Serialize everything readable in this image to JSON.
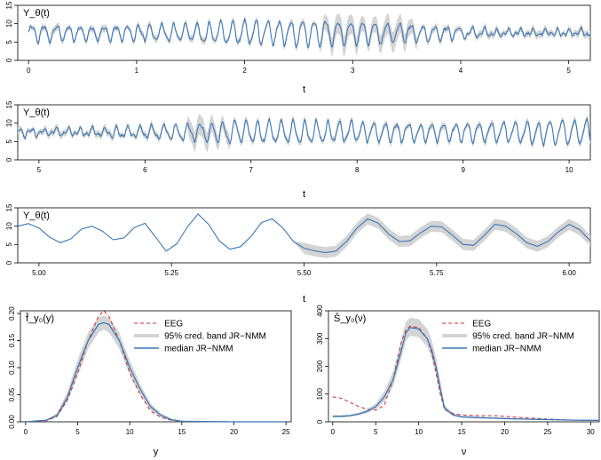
{
  "colors": {
    "median": "#3a78b5",
    "band": "#d4d4d4",
    "eeg": "#d62728",
    "axis": "#000000"
  },
  "chart_data": [
    {
      "type": "line",
      "panel_label": "Y_θ(t)",
      "xlabel": "t",
      "xlim": [
        -0.1,
        5.2
      ],
      "ylim": [
        0,
        15
      ],
      "xticks": [
        0,
        1,
        2,
        3,
        4,
        5
      ],
      "yticks": [
        0,
        5,
        10,
        15
      ],
      "oscillation": {
        "t_start": 0.0,
        "t_end": 5.2,
        "samples": 700,
        "freq_hz": 9,
        "mean": 7.5,
        "amplitude": 3.0,
        "noisy_segment": [
          2.7,
          3.6
        ],
        "seed": 11
      },
      "series": [
        {
          "values": []
        }
      ]
    },
    {
      "type": "line",
      "panel_label": "Y_θ(t)",
      "xlabel": "t",
      "xlim": [
        4.8,
        10.2
      ],
      "ylim": [
        0,
        15
      ],
      "xticks": [
        5,
        6,
        7,
        8,
        9,
        10
      ],
      "yticks": [
        0,
        5,
        10,
        15
      ],
      "oscillation": {
        "t_start": 4.8,
        "t_end": 10.2,
        "samples": 700,
        "freq_hz": 9,
        "mean": 7.5,
        "amplitude": 3.3,
        "noisy_segment": [
          6.4,
          6.8
        ],
        "seed": 23
      },
      "series": [
        {
          "values": []
        }
      ]
    },
    {
      "type": "line",
      "panel_label": "Y_θ(t)",
      "xlabel": "t",
      "xlim": [
        4.96,
        6.04
      ],
      "ylim": [
        0,
        15
      ],
      "xticks": [
        5.0,
        5.25,
        5.5,
        5.75,
        6.0
      ],
      "xticklabels": [
        "5.00",
        "5.25",
        "5.50",
        "5.75",
        "6.00"
      ],
      "yticks": [
        0,
        5,
        10,
        15
      ],
      "points": [
        [
          4.96,
          10.0
        ],
        [
          4.98,
          10.7
        ],
        [
          5.0,
          9.5
        ],
        [
          5.02,
          7.0
        ],
        [
          5.04,
          5.5
        ],
        [
          5.06,
          6.5
        ],
        [
          5.08,
          9.2
        ],
        [
          5.1,
          10.0
        ],
        [
          5.12,
          8.6
        ],
        [
          5.14,
          6.3
        ],
        [
          5.16,
          6.8
        ],
        [
          5.18,
          9.6
        ],
        [
          5.2,
          10.8
        ],
        [
          5.22,
          7.0
        ],
        [
          5.24,
          3.2
        ],
        [
          5.26,
          5.2
        ],
        [
          5.28,
          9.8
        ],
        [
          5.3,
          13.3
        ],
        [
          5.32,
          10.5
        ],
        [
          5.34,
          6.0
        ],
        [
          5.36,
          3.7
        ],
        [
          5.38,
          4.4
        ],
        [
          5.4,
          7.2
        ],
        [
          5.42,
          11.0
        ],
        [
          5.44,
          12.0
        ],
        [
          5.46,
          9.5
        ],
        [
          5.48,
          5.8
        ],
        [
          5.5,
          4.0
        ],
        [
          5.52,
          3.3
        ],
        [
          5.54,
          2.8
        ],
        [
          5.56,
          3.2
        ],
        [
          5.58,
          5.8
        ],
        [
          5.6,
          9.5
        ],
        [
          5.62,
          12.0
        ],
        [
          5.64,
          10.8
        ],
        [
          5.66,
          7.8
        ],
        [
          5.68,
          5.8
        ],
        [
          5.7,
          6.0
        ],
        [
          5.72,
          8.2
        ],
        [
          5.74,
          10.0
        ],
        [
          5.76,
          9.8
        ],
        [
          5.78,
          7.5
        ],
        [
          5.8,
          5.0
        ],
        [
          5.82,
          4.8
        ],
        [
          5.84,
          7.5
        ],
        [
          5.86,
          10.5
        ],
        [
          5.88,
          10.0
        ],
        [
          5.9,
          8.0
        ],
        [
          5.92,
          5.5
        ],
        [
          5.94,
          4.5
        ],
        [
          5.96,
          5.8
        ],
        [
          5.98,
          8.5
        ],
        [
          6.0,
          10.5
        ],
        [
          6.02,
          9.0
        ],
        [
          6.04,
          6.0
        ]
      ],
      "band_from_x": 5.5,
      "series": [
        {
          "values": []
        }
      ]
    },
    {
      "type": "line",
      "panel_label": "f̂_y₀(y)",
      "xlabel": "y",
      "xlim": [
        -0.5,
        25.5
      ],
      "ylim": [
        0,
        0.205
      ],
      "xticks": [
        0,
        5,
        10,
        15,
        20,
        25
      ],
      "yticks": [
        0.0,
        0.05,
        0.1,
        0.15,
        0.2
      ],
      "yticklabels": [
        "0.00",
        "0.05",
        "0.10",
        "0.15",
        "0.20"
      ],
      "legend_position": "top-right",
      "legend": [
        "EEG",
        "95% cred. band JR−NMM",
        "median JR−NMM"
      ],
      "series": [
        {
          "name": "EEG",
          "x": [
            0,
            2,
            3,
            4,
            5,
            6,
            7,
            7.5,
            8,
            9,
            10,
            11,
            12,
            13,
            14,
            15,
            20,
            25
          ],
          "values": [
            0,
            0.002,
            0.01,
            0.04,
            0.09,
            0.15,
            0.195,
            0.205,
            0.195,
            0.15,
            0.09,
            0.05,
            0.02,
            0.008,
            0.003,
            0.001,
            0,
            0
          ]
        },
        {
          "name": "median JR−NMM",
          "x": [
            0,
            2,
            3,
            4,
            5,
            6,
            7,
            7.5,
            8,
            9,
            10,
            11,
            12,
            13,
            14,
            15,
            20,
            25
          ],
          "values": [
            0,
            0.003,
            0.012,
            0.045,
            0.1,
            0.15,
            0.18,
            0.183,
            0.18,
            0.15,
            0.1,
            0.06,
            0.028,
            0.012,
            0.004,
            0.001,
            0,
            0
          ]
        }
      ],
      "band": {
        "name": "95% cred. band JR−NMM",
        "x": [
          0,
          2,
          3,
          4,
          5,
          6,
          7,
          7.5,
          8,
          9,
          10,
          11,
          12,
          13,
          14,
          15,
          20,
          25
        ],
        "lower": [
          0,
          0.002,
          0.008,
          0.036,
          0.085,
          0.135,
          0.165,
          0.17,
          0.165,
          0.135,
          0.087,
          0.05,
          0.022,
          0.008,
          0.002,
          0,
          0,
          0
        ],
        "upper": [
          0,
          0.004,
          0.016,
          0.055,
          0.115,
          0.165,
          0.193,
          0.196,
          0.193,
          0.165,
          0.113,
          0.07,
          0.034,
          0.016,
          0.006,
          0.002,
          0,
          0
        ]
      }
    },
    {
      "type": "line",
      "panel_label": "Ŝ_y₀(ν)",
      "xlabel": "ν",
      "xlim": [
        -0.5,
        31
      ],
      "ylim": [
        0,
        400
      ],
      "xticks": [
        0,
        5,
        10,
        15,
        20,
        25,
        30
      ],
      "yticks": [
        0,
        100,
        200,
        300,
        400
      ],
      "legend_position": "top-right",
      "legend": [
        "EEG",
        "95% cred. band JR−NMM",
        "median JR−NMM"
      ],
      "series": [
        {
          "name": "EEG",
          "x": [
            0,
            1,
            2,
            3,
            4,
            5,
            6,
            7,
            8,
            8.5,
            9,
            10,
            11,
            11.5,
            12,
            12.5,
            13,
            14,
            15,
            17,
            19,
            20,
            22,
            25,
            28,
            31
          ],
          "values": [
            90,
            85,
            70,
            55,
            45,
            42,
            60,
            150,
            290,
            330,
            345,
            340,
            300,
            250,
            180,
            100,
            45,
            30,
            25,
            22,
            22,
            20,
            15,
            10,
            6,
            5
          ]
        },
        {
          "name": "median JR−NMM",
          "x": [
            0,
            1,
            2,
            3,
            4,
            5,
            6,
            7,
            8,
            8.5,
            9,
            10,
            11,
            11.5,
            12,
            12.5,
            13,
            14,
            15,
            17,
            19,
            20,
            22,
            25,
            28,
            31
          ],
          "values": [
            20,
            20,
            22,
            28,
            38,
            55,
            90,
            150,
            260,
            320,
            340,
            335,
            300,
            260,
            200,
            120,
            50,
            25,
            18,
            15,
            13,
            12,
            10,
            8,
            6,
            5
          ]
        }
      ],
      "band": {
        "name": "95% cred. band JR−NMM",
        "x": [
          0,
          1,
          2,
          3,
          4,
          5,
          6,
          7,
          8,
          8.5,
          9,
          10,
          11,
          11.5,
          12,
          12.5,
          13,
          14,
          15,
          17,
          19,
          20,
          22,
          25,
          28,
          31
        ],
        "lower": [
          16,
          16,
          18,
          23,
          31,
          45,
          72,
          125,
          230,
          290,
          310,
          305,
          270,
          230,
          170,
          95,
          40,
          20,
          14,
          12,
          10,
          9,
          8,
          6,
          5,
          4
        ],
        "upper": [
          24,
          24,
          27,
          33,
          46,
          66,
          110,
          180,
          300,
          360,
          375,
          370,
          335,
          295,
          235,
          150,
          62,
          30,
          22,
          18,
          16,
          15,
          12,
          10,
          7,
          6
        ]
      }
    }
  ]
}
